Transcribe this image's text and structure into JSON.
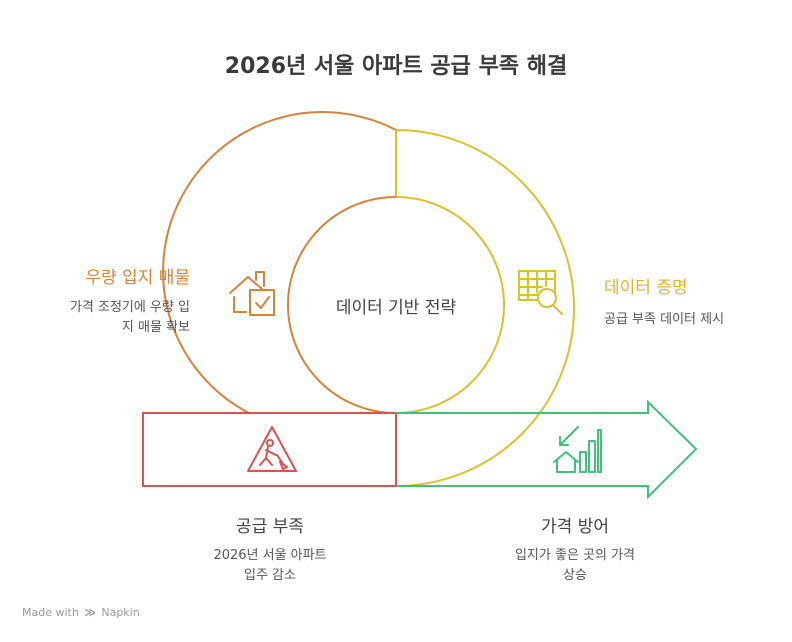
{
  "title": "2026년 서울 아파트 공급 부족 해결",
  "center_label": "데이터 기반 전략",
  "colors": {
    "orange": "#d9823b",
    "yellow": "#d9c22a",
    "red": "#d9534f",
    "green": "#3fc27a"
  },
  "stages": {
    "left": {
      "title": "우량 입지 매물",
      "desc_line1": "가격 조정기에 우량 입",
      "desc_line2": "지 매물 확보",
      "icon": "house-check-icon"
    },
    "right": {
      "title": "데이터 증명",
      "desc": "공급 부족 데이터 제시",
      "icon": "table-magnifier-icon"
    },
    "bottom_left": {
      "title": "공급 부족",
      "desc_line1": "2026년 서울 아파트",
      "desc_line2": "입주 감소",
      "icon": "construction-warning-icon"
    },
    "bottom_right": {
      "title": "가격 방어",
      "desc_line1": "입지가 좋은 곳의 가격",
      "desc_line2": "상승",
      "icon": "house-growth-chart-icon"
    }
  },
  "footer": {
    "made_with": "Made with",
    "brand": "Napkin"
  }
}
